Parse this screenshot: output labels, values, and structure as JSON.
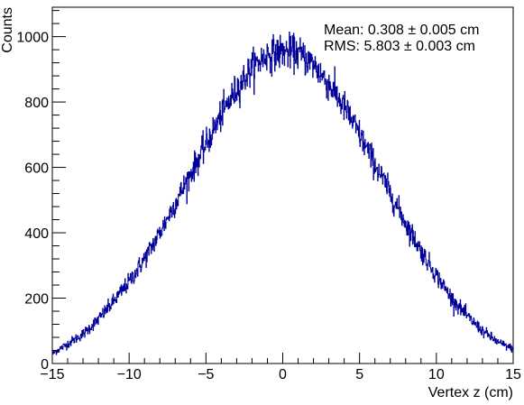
{
  "chart_data": {
    "type": "line",
    "style": "histogram",
    "xlabel": "Vertex z (cm)",
    "ylabel": "Counts",
    "xlim": [
      -15,
      15
    ],
    "ylim": [
      0,
      1090
    ],
    "x_ticks": [
      -15,
      -10,
      -5,
      0,
      5,
      10,
      15
    ],
    "x_tick_labels": [
      "−15",
      "−10",
      "−5",
      "0",
      "5",
      "10",
      "15"
    ],
    "y_ticks": [
      0,
      200,
      400,
      600,
      800,
      1000
    ],
    "y_tick_labels": [
      "0",
      "200",
      "400",
      "600",
      "800",
      "1000"
    ],
    "line_color": "#000099",
    "stats": {
      "mean_label": "Mean: 0.308 ± 0.005 cm",
      "rms_label": "RMS: 5.803 ± 0.003 cm"
    },
    "grid": false,
    "series": [
      {
        "x": [
          -15,
          -14,
          -13,
          -12,
          -11,
          -10,
          -9,
          -8,
          -7,
          -6,
          -5,
          -4,
          -3,
          -2,
          -1,
          0,
          1,
          2,
          3,
          4,
          5,
          6,
          7,
          8,
          9,
          10,
          11,
          12,
          13,
          14,
          15
        ],
        "y": [
          30,
          60,
          90,
          135,
          190,
          250,
          320,
          400,
          490,
          580,
          670,
          760,
          840,
          905,
          945,
          955,
          950,
          915,
          855,
          785,
          700,
          610,
          520,
          430,
          345,
          270,
          200,
          145,
          100,
          65,
          45
        ]
      }
    ]
  }
}
